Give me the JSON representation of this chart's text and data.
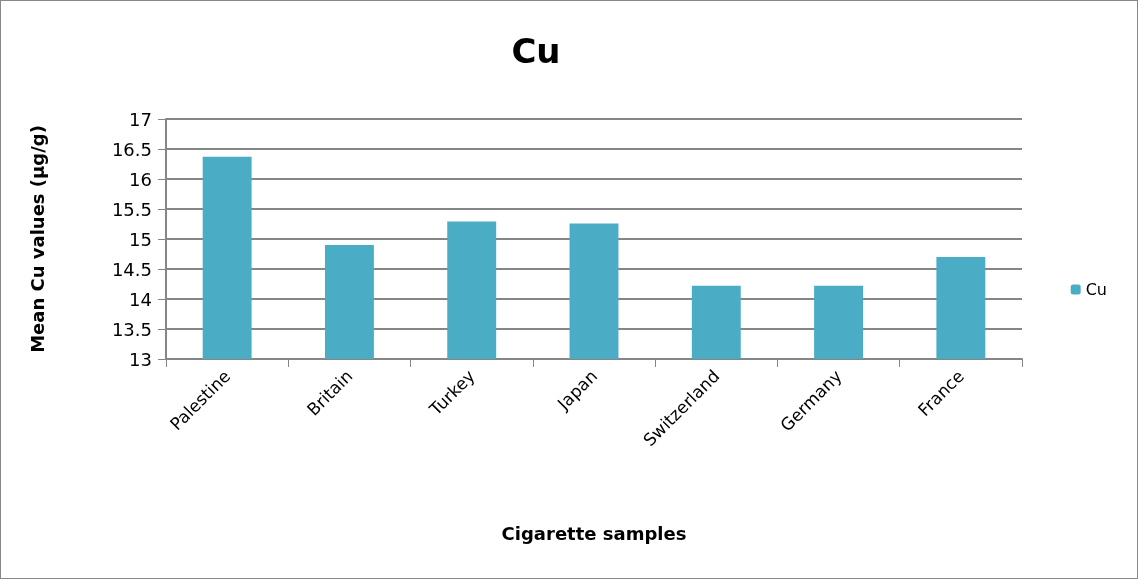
{
  "chart_data": {
    "type": "bar",
    "title": "Cu",
    "xlabel": "Cigarette samples",
    "ylabel": "Mean Cu values (µg/g)",
    "categories": [
      "Palestine",
      "Britain",
      "Turkey",
      "Japan",
      "Switzerland",
      "Germany",
      "France"
    ],
    "series": [
      {
        "name": "Cu",
        "color": "#4bacc6",
        "values": [
          16.37,
          14.9,
          15.29,
          15.26,
          14.22,
          14.22,
          14.7
        ]
      }
    ],
    "ylim": [
      13,
      17
    ],
    "yticks": [
      13,
      13.5,
      14,
      14.5,
      15,
      15.5,
      16,
      16.5,
      17
    ],
    "grid": "y",
    "legend": "right"
  }
}
